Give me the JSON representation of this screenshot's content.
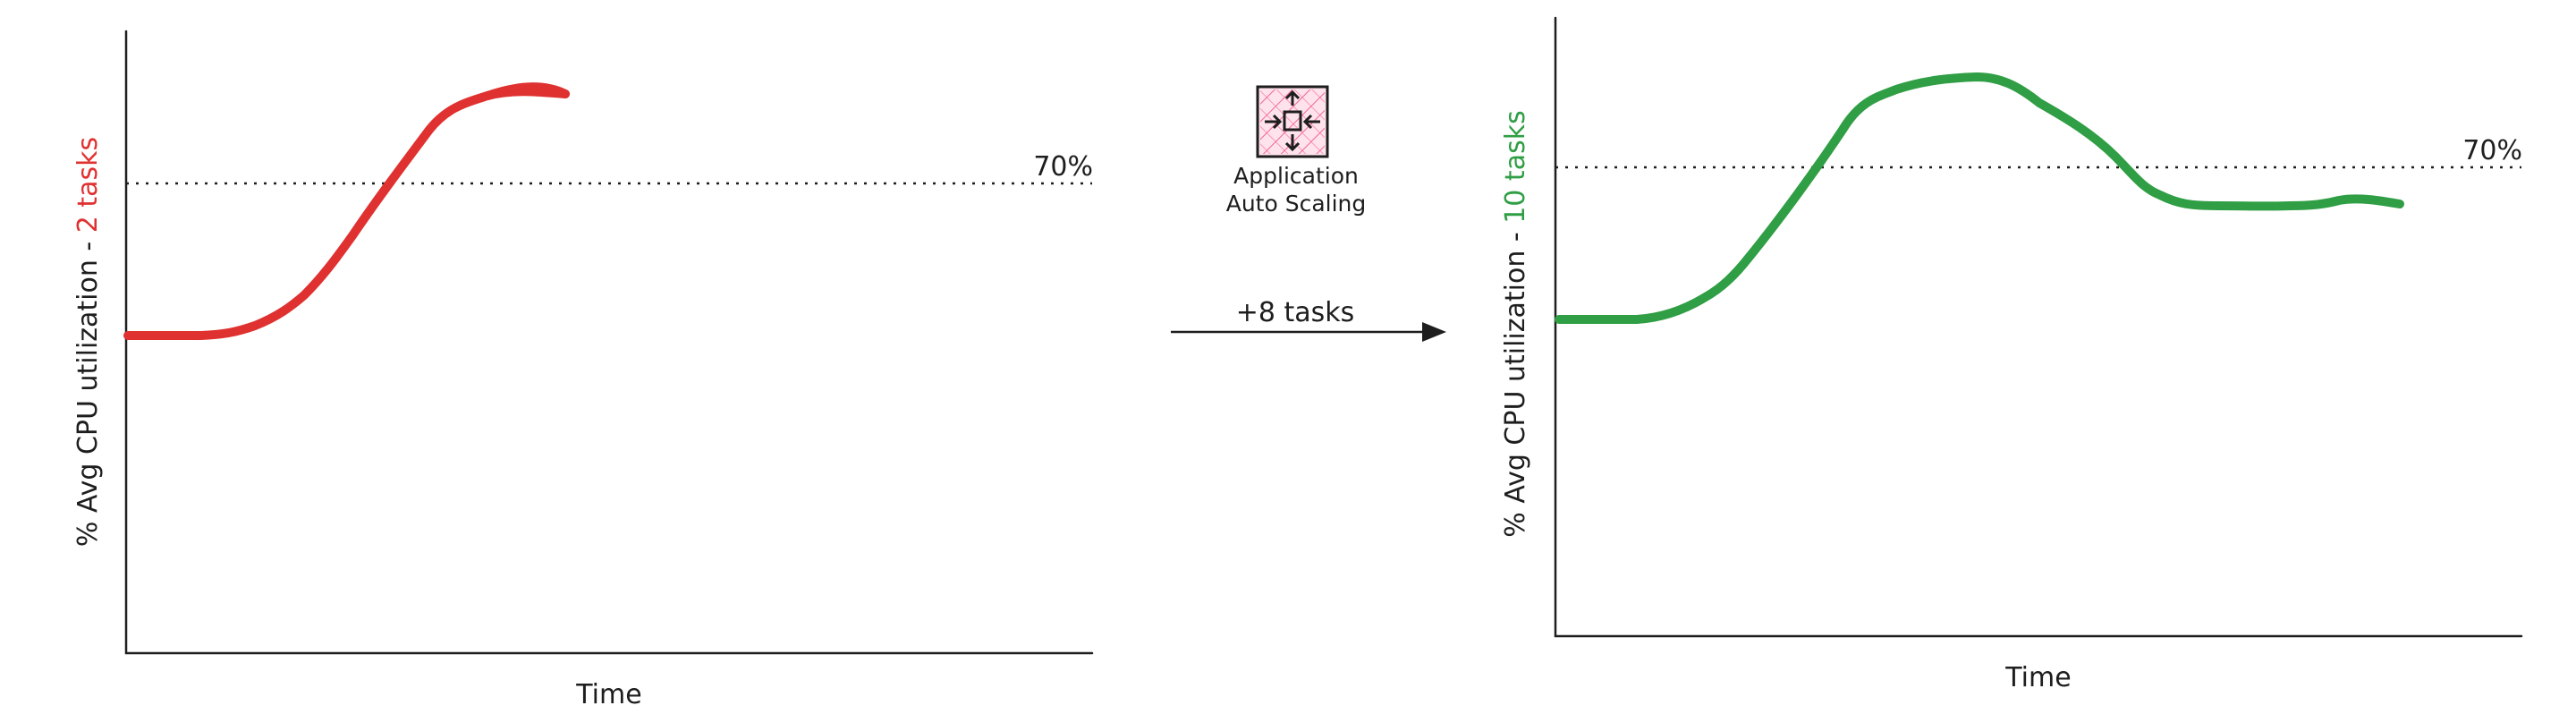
{
  "colors": {
    "left_series": "#e03131",
    "right_series": "#2f9e44",
    "ink": "#1e1e1e",
    "icon_bg": "#ffe3ec",
    "icon_hatch": "#f06595"
  },
  "left_chart": {
    "ylabel_prefix": "% Avg CPU utilization - ",
    "ylabel_highlight": "2 tasks",
    "xlabel": "Time",
    "threshold_label": "70%"
  },
  "right_chart": {
    "ylabel_prefix": "% Avg CPU utilization - ",
    "ylabel_highlight": "10 tasks",
    "xlabel": "Time",
    "threshold_label": "70%"
  },
  "service": {
    "icon": "application-auto-scaling-icon",
    "label_line1": "Application",
    "label_line2": "Auto Scaling"
  },
  "arrow": {
    "label": "+8 tasks"
  }
}
